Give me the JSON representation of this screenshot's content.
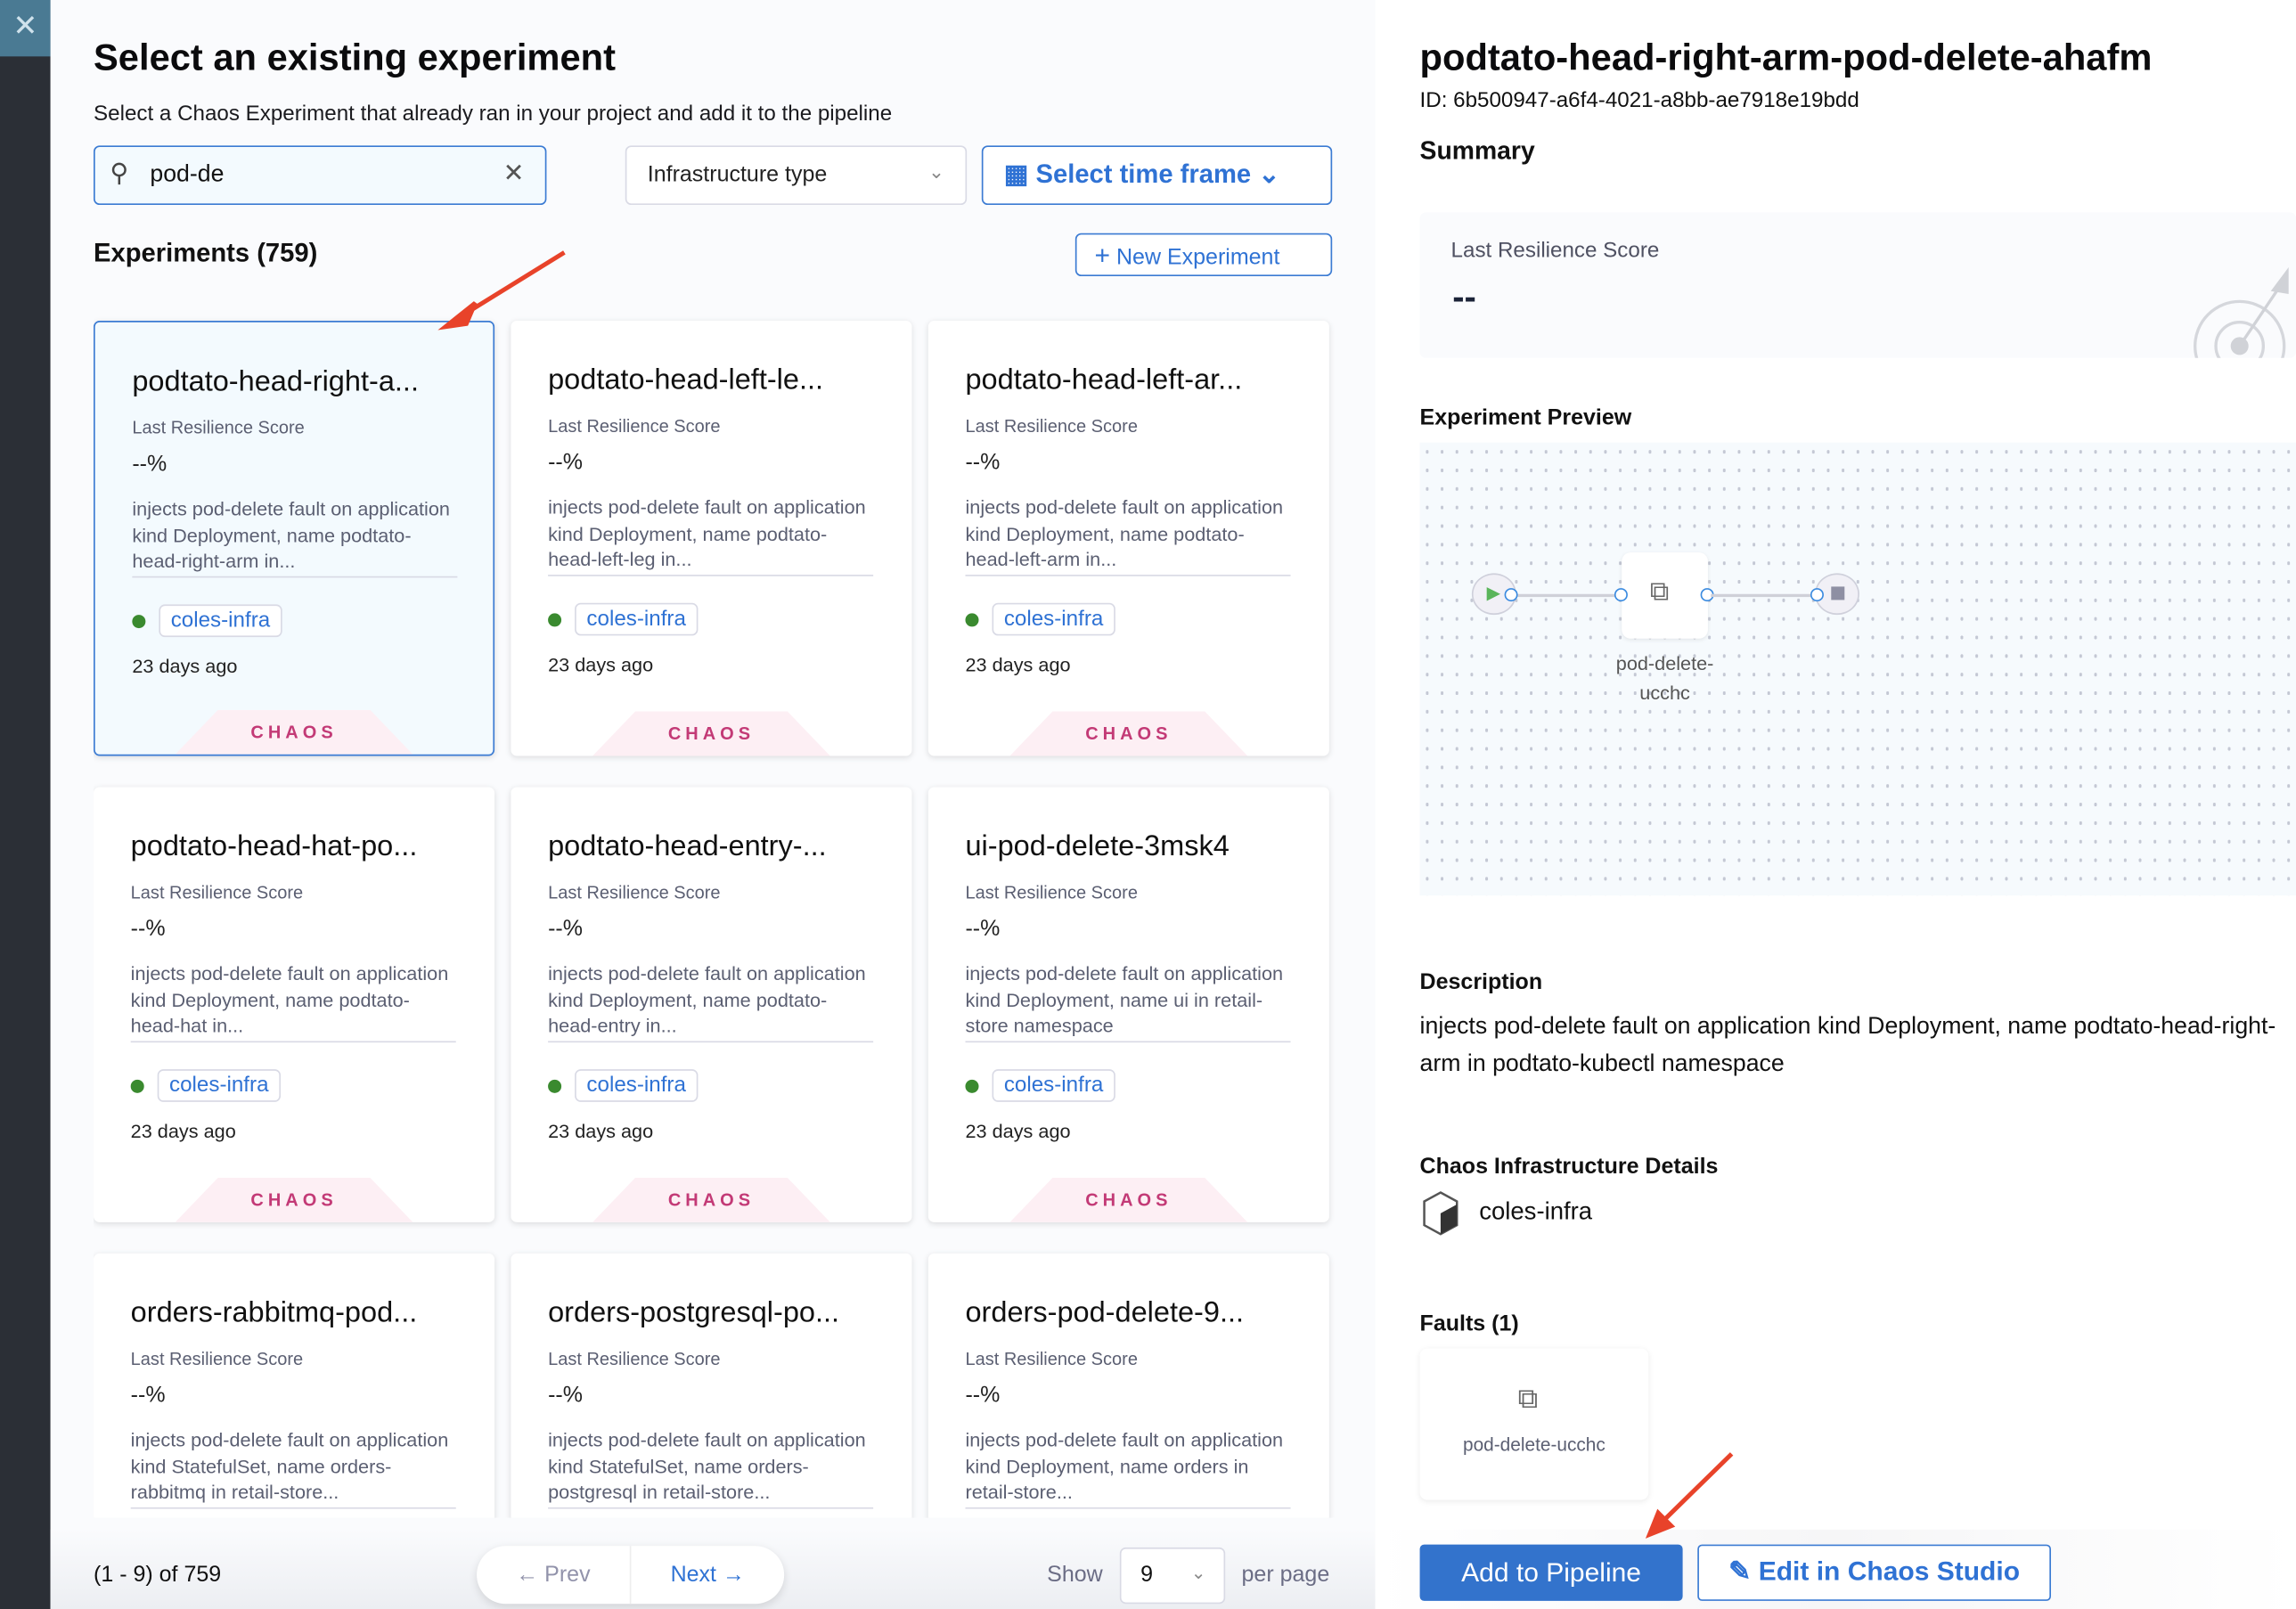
{
  "header": {
    "title": "Select an existing experiment",
    "subtitle": "Select a Chaos Experiment that already ran in your project and add it to the pipeline"
  },
  "filters": {
    "search_value": "pod-de",
    "infrastructure_placeholder": "Infrastructure type",
    "time_frame_label": "Select time frame"
  },
  "list": {
    "count_label": "Experiments (759)",
    "new_experiment_label": "New Experiment",
    "score_label": "Last Resilience Score",
    "tag_label": "CHAOS",
    "experiments": [
      {
        "name": "podtato-head-right-a...",
        "score": "--%",
        "description": "injects pod-delete fault on application kind Deployment, name podtato-head-right-arm in...",
        "infra": "coles-infra",
        "time": "23 days ago",
        "selected": true
      },
      {
        "name": "podtato-head-left-le...",
        "score": "--%",
        "description": "injects pod-delete fault on application kind Deployment, name podtato-head-left-leg in...",
        "infra": "coles-infra",
        "time": "23 days ago"
      },
      {
        "name": "podtato-head-left-ar...",
        "score": "--%",
        "description": "injects pod-delete fault on application kind Deployment, name podtato-head-left-arm in...",
        "infra": "coles-infra",
        "time": "23 days ago"
      },
      {
        "name": "podtato-head-hat-po...",
        "score": "--%",
        "description": "injects pod-delete fault on application kind Deployment, name podtato-head-hat in...",
        "infra": "coles-infra",
        "time": "23 days ago"
      },
      {
        "name": "podtato-head-entry-...",
        "score": "--%",
        "description": "injects pod-delete fault on application kind Deployment, name podtato-head-entry in...",
        "infra": "coles-infra",
        "time": "23 days ago"
      },
      {
        "name": "ui-pod-delete-3msk4",
        "score": "--%",
        "description": "injects pod-delete fault on application kind Deployment, name ui in retail-store namespace",
        "infra": "coles-infra",
        "time": "23 days ago"
      },
      {
        "name": "orders-rabbitmq-pod...",
        "score": "--%",
        "description": "injects pod-delete fault on application kind StatefulSet, name orders-rabbitmq in retail-store...",
        "infra": "coles-infra",
        "time": "23 days ago"
      },
      {
        "name": "orders-postgresql-po...",
        "score": "--%",
        "description": "injects pod-delete fault on application kind StatefulSet, name orders-postgresql in retail-store...",
        "infra": "coles-infra",
        "time": "23 days ago"
      },
      {
        "name": "orders-pod-delete-9...",
        "score": "--%",
        "description": "injects pod-delete fault on application kind Deployment, name orders in retail-store...",
        "infra": "coles-infra",
        "time": "23 days ago"
      }
    ]
  },
  "pagination": {
    "range": "(1 - 9) of 759",
    "prev": "Prev",
    "next": "Next",
    "show": "Show",
    "per_page_value": "9",
    "per_page": "per page"
  },
  "details": {
    "title": "podtato-head-right-arm-pod-delete-ahafm",
    "id": "ID: 6b500947-a6f4-4021-a8bb-ae7918e19bdd",
    "summary": "Summary",
    "score_label": "Last Resilience Score",
    "score_value": "--",
    "preview_label": "Experiment Preview",
    "preview_node": "pod-delete-ucchc",
    "description_label": "Description",
    "description": "injects pod-delete fault on application kind Deployment, name podtato-head-right-arm in podtato-kubectl namespace",
    "infra_label": "Chaos Infrastructure Details",
    "infra": "coles-infra",
    "faults_label": "Faults (1)",
    "fault_name": "pod-delete-ucchc",
    "add_button": "Add to Pipeline",
    "edit_button": "Edit in Chaos Studio"
  },
  "colors": {
    "accent": "#3373cc",
    "chaos": "#c33a76",
    "status_green": "#3a8a2f",
    "annotation_arrow": "#e8432a"
  }
}
